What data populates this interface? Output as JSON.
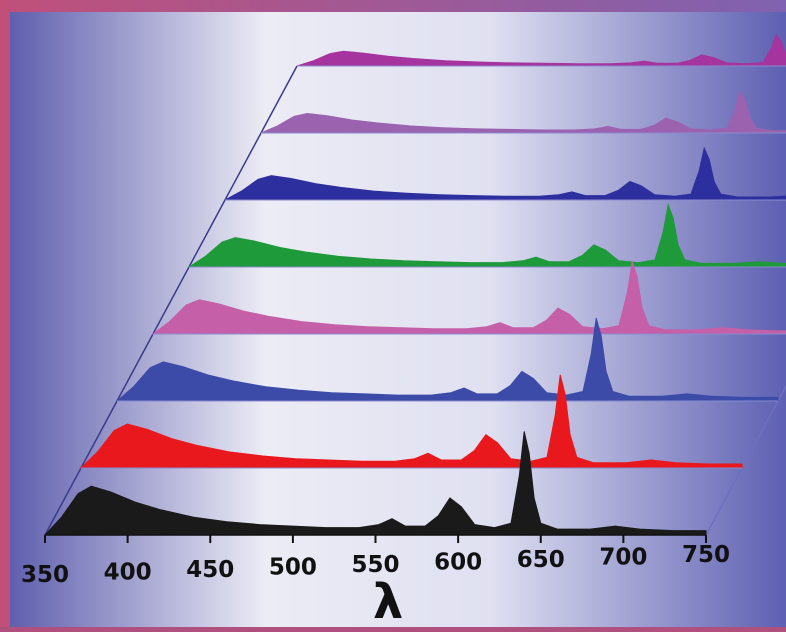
{
  "chart_data": {
    "type": "area",
    "title": "",
    "xlabel": "λ",
    "ylabel": "",
    "xlim": [
      350,
      750
    ],
    "x_ticks": [
      "350",
      "400",
      "450",
      "500",
      "550",
      "600",
      "650",
      "700",
      "750"
    ],
    "grid": false,
    "legend": "none",
    "layout": "waterfall-3d",
    "series": [
      {
        "color": "#1a1a1a",
        "points": [
          [
            350,
            0
          ],
          [
            360,
            0.12
          ],
          [
            370,
            0.28
          ],
          [
            378,
            0.33
          ],
          [
            390,
            0.29
          ],
          [
            405,
            0.22
          ],
          [
            420,
            0.17
          ],
          [
            440,
            0.12
          ],
          [
            460,
            0.09
          ],
          [
            480,
            0.07
          ],
          [
            500,
            0.06
          ],
          [
            520,
            0.05
          ],
          [
            540,
            0.05
          ],
          [
            552,
            0.07
          ],
          [
            560,
            0.11
          ],
          [
            568,
            0.06
          ],
          [
            580,
            0.06
          ],
          [
            588,
            0.13
          ],
          [
            595,
            0.25
          ],
          [
            602,
            0.19
          ],
          [
            610,
            0.07
          ],
          [
            622,
            0.05
          ],
          [
            632,
            0.08
          ],
          [
            637,
            0.4
          ],
          [
            640,
            0.7
          ],
          [
            643,
            0.55
          ],
          [
            646,
            0.25
          ],
          [
            650,
            0.08
          ],
          [
            660,
            0.04
          ],
          [
            680,
            0.04
          ],
          [
            695,
            0.06
          ],
          [
            710,
            0.04
          ],
          [
            730,
            0.03
          ],
          [
            750,
            0.03
          ]
        ]
      },
      {
        "color": "#e8181c",
        "points": [
          [
            350,
            0
          ],
          [
            360,
            0.12
          ],
          [
            370,
            0.28
          ],
          [
            378,
            0.33
          ],
          [
            390,
            0.29
          ],
          [
            405,
            0.22
          ],
          [
            420,
            0.17
          ],
          [
            440,
            0.12
          ],
          [
            460,
            0.09
          ],
          [
            480,
            0.07
          ],
          [
            500,
            0.06
          ],
          [
            520,
            0.05
          ],
          [
            540,
            0.05
          ],
          [
            552,
            0.07
          ],
          [
            560,
            0.11
          ],
          [
            568,
            0.06
          ],
          [
            580,
            0.06
          ],
          [
            588,
            0.13
          ],
          [
            595,
            0.25
          ],
          [
            602,
            0.19
          ],
          [
            610,
            0.07
          ],
          [
            622,
            0.05
          ],
          [
            632,
            0.08
          ],
          [
            637,
            0.4
          ],
          [
            640,
            0.7
          ],
          [
            643,
            0.55
          ],
          [
            646,
            0.25
          ],
          [
            650,
            0.08
          ],
          [
            660,
            0.04
          ],
          [
            680,
            0.04
          ],
          [
            695,
            0.06
          ],
          [
            710,
            0.04
          ],
          [
            730,
            0.03
          ],
          [
            750,
            0.03
          ]
        ]
      },
      {
        "color": "#3c4aa8",
        "points": [
          [
            350,
            0
          ],
          [
            360,
            0.12
          ],
          [
            370,
            0.28
          ],
          [
            378,
            0.33
          ],
          [
            390,
            0.29
          ],
          [
            405,
            0.22
          ],
          [
            420,
            0.17
          ],
          [
            440,
            0.12
          ],
          [
            460,
            0.09
          ],
          [
            480,
            0.07
          ],
          [
            500,
            0.06
          ],
          [
            520,
            0.05
          ],
          [
            540,
            0.05
          ],
          [
            552,
            0.07
          ],
          [
            560,
            0.11
          ],
          [
            568,
            0.06
          ],
          [
            580,
            0.06
          ],
          [
            588,
            0.13
          ],
          [
            595,
            0.25
          ],
          [
            602,
            0.19
          ],
          [
            610,
            0.07
          ],
          [
            622,
            0.05
          ],
          [
            632,
            0.08
          ],
          [
            637,
            0.4
          ],
          [
            640,
            0.7
          ],
          [
            643,
            0.55
          ],
          [
            646,
            0.25
          ],
          [
            650,
            0.08
          ],
          [
            660,
            0.04
          ],
          [
            680,
            0.04
          ],
          [
            695,
            0.06
          ],
          [
            710,
            0.04
          ],
          [
            730,
            0.03
          ],
          [
            750,
            0.03
          ]
        ]
      },
      {
        "color": "#c560a8",
        "points": [
          [
            350,
            0
          ],
          [
            360,
            0.12
          ],
          [
            370,
            0.28
          ],
          [
            378,
            0.33
          ],
          [
            390,
            0.29
          ],
          [
            405,
            0.22
          ],
          [
            420,
            0.17
          ],
          [
            440,
            0.12
          ],
          [
            460,
            0.09
          ],
          [
            480,
            0.07
          ],
          [
            500,
            0.06
          ],
          [
            520,
            0.05
          ],
          [
            540,
            0.05
          ],
          [
            552,
            0.07
          ],
          [
            560,
            0.11
          ],
          [
            568,
            0.06
          ],
          [
            580,
            0.06
          ],
          [
            588,
            0.13
          ],
          [
            595,
            0.25
          ],
          [
            602,
            0.19
          ],
          [
            610,
            0.07
          ],
          [
            622,
            0.05
          ],
          [
            632,
            0.08
          ],
          [
            637,
            0.4
          ],
          [
            640,
            0.7
          ],
          [
            643,
            0.55
          ],
          [
            646,
            0.25
          ],
          [
            650,
            0.08
          ],
          [
            660,
            0.04
          ],
          [
            680,
            0.04
          ],
          [
            695,
            0.06
          ],
          [
            710,
            0.04
          ],
          [
            730,
            0.03
          ],
          [
            750,
            0.03
          ]
        ]
      },
      {
        "color": "#1f9a3a",
        "points": [
          [
            350,
            0
          ],
          [
            360,
            0.12
          ],
          [
            370,
            0.28
          ],
          [
            378,
            0.33
          ],
          [
            390,
            0.29
          ],
          [
            405,
            0.22
          ],
          [
            420,
            0.17
          ],
          [
            440,
            0.12
          ],
          [
            460,
            0.09
          ],
          [
            480,
            0.07
          ],
          [
            500,
            0.06
          ],
          [
            520,
            0.05
          ],
          [
            540,
            0.05
          ],
          [
            552,
            0.07
          ],
          [
            560,
            0.11
          ],
          [
            568,
            0.06
          ],
          [
            580,
            0.06
          ],
          [
            588,
            0.13
          ],
          [
            595,
            0.25
          ],
          [
            602,
            0.19
          ],
          [
            610,
            0.07
          ],
          [
            622,
            0.05
          ],
          [
            632,
            0.08
          ],
          [
            637,
            0.4
          ],
          [
            640,
            0.7
          ],
          [
            643,
            0.55
          ],
          [
            646,
            0.25
          ],
          [
            650,
            0.08
          ],
          [
            660,
            0.04
          ],
          [
            680,
            0.04
          ],
          [
            695,
            0.06
          ],
          [
            710,
            0.04
          ],
          [
            730,
            0.03
          ],
          [
            750,
            0.03
          ]
        ]
      },
      {
        "color": "#2e2f9e",
        "points": [
          [
            350,
            0
          ],
          [
            360,
            0.12
          ],
          [
            370,
            0.28
          ],
          [
            378,
            0.33
          ],
          [
            390,
            0.29
          ],
          [
            405,
            0.22
          ],
          [
            420,
            0.17
          ],
          [
            440,
            0.12
          ],
          [
            460,
            0.09
          ],
          [
            480,
            0.07
          ],
          [
            500,
            0.06
          ],
          [
            520,
            0.05
          ],
          [
            540,
            0.05
          ],
          [
            552,
            0.07
          ],
          [
            560,
            0.11
          ],
          [
            568,
            0.06
          ],
          [
            580,
            0.06
          ],
          [
            588,
            0.13
          ],
          [
            595,
            0.25
          ],
          [
            602,
            0.19
          ],
          [
            610,
            0.07
          ],
          [
            622,
            0.05
          ],
          [
            632,
            0.08
          ],
          [
            637,
            0.4
          ],
          [
            640,
            0.7
          ],
          [
            643,
            0.55
          ],
          [
            646,
            0.25
          ],
          [
            650,
            0.08
          ],
          [
            660,
            0.04
          ],
          [
            680,
            0.04
          ],
          [
            695,
            0.06
          ],
          [
            710,
            0.04
          ],
          [
            730,
            0.03
          ],
          [
            750,
            0.03
          ]
        ]
      },
      {
        "color": "#9b62b0",
        "points": [
          [
            350,
            0
          ],
          [
            360,
            0.12
          ],
          [
            370,
            0.28
          ],
          [
            378,
            0.33
          ],
          [
            390,
            0.29
          ],
          [
            405,
            0.22
          ],
          [
            420,
            0.17
          ],
          [
            440,
            0.12
          ],
          [
            460,
            0.09
          ],
          [
            480,
            0.07
          ],
          [
            500,
            0.06
          ],
          [
            520,
            0.05
          ],
          [
            540,
            0.05
          ],
          [
            552,
            0.07
          ],
          [
            560,
            0.11
          ],
          [
            568,
            0.06
          ],
          [
            580,
            0.06
          ],
          [
            588,
            0.13
          ],
          [
            595,
            0.25
          ],
          [
            602,
            0.19
          ],
          [
            610,
            0.07
          ],
          [
            622,
            0.05
          ],
          [
            632,
            0.08
          ],
          [
            637,
            0.4
          ],
          [
            640,
            0.7
          ],
          [
            643,
            0.55
          ],
          [
            646,
            0.25
          ],
          [
            650,
            0.08
          ],
          [
            660,
            0.04
          ],
          [
            680,
            0.04
          ],
          [
            695,
            0.06
          ],
          [
            710,
            0.04
          ],
          [
            730,
            0.03
          ],
          [
            750,
            0.03
          ]
        ]
      },
      {
        "color": "#a6349e",
        "points": [
          [
            350,
            0
          ],
          [
            360,
            0.12
          ],
          [
            370,
            0.28
          ],
          [
            378,
            0.33
          ],
          [
            390,
            0.29
          ],
          [
            405,
            0.22
          ],
          [
            420,
            0.17
          ],
          [
            440,
            0.12
          ],
          [
            460,
            0.09
          ],
          [
            480,
            0.07
          ],
          [
            500,
            0.06
          ],
          [
            520,
            0.05
          ],
          [
            540,
            0.05
          ],
          [
            552,
            0.07
          ],
          [
            560,
            0.11
          ],
          [
            568,
            0.06
          ],
          [
            580,
            0.06
          ],
          [
            588,
            0.13
          ],
          [
            595,
            0.25
          ],
          [
            602,
            0.19
          ],
          [
            610,
            0.07
          ],
          [
            622,
            0.05
          ],
          [
            632,
            0.08
          ],
          [
            637,
            0.4
          ],
          [
            640,
            0.7
          ],
          [
            643,
            0.55
          ],
          [
            646,
            0.25
          ],
          [
            650,
            0.08
          ],
          [
            660,
            0.04
          ],
          [
            680,
            0.04
          ],
          [
            695,
            0.06
          ],
          [
            710,
            0.04
          ],
          [
            730,
            0.03
          ],
          [
            750,
            0.03
          ]
        ]
      }
    ]
  }
}
